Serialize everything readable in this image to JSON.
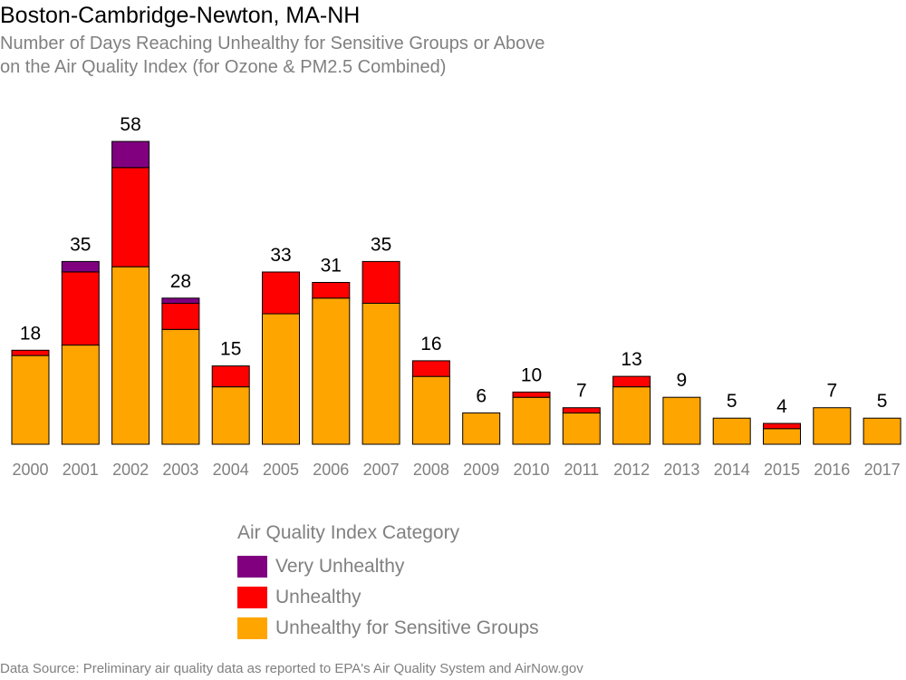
{
  "title": "Boston-Cambridge-Newton, MA-NH",
  "subtitle_lines": [
    "Number of Days Reaching Unhealthy for Sensitive Groups or Above",
    "on the Air Quality Index (for Ozone & PM2.5 Combined)"
  ],
  "legend": {
    "title": "Air Quality Index Category",
    "items": [
      {
        "label": "Very Unhealthy",
        "color": "#800080"
      },
      {
        "label": "Unhealthy",
        "color": "#ff0000"
      },
      {
        "label": "Unhealthy for Sensitive Groups",
        "color": "#ffa500"
      }
    ]
  },
  "source": "Data Source: Preliminary air quality data as reported to EPA's Air Quality System and AirNow.gov",
  "chart_data": {
    "type": "bar",
    "stacked": true,
    "categories": [
      "2000",
      "2001",
      "2002",
      "2003",
      "2004",
      "2005",
      "2006",
      "2007",
      "2008",
      "2009",
      "2010",
      "2011",
      "2012",
      "2013",
      "2014",
      "2015",
      "2016",
      "2017"
    ],
    "series": [
      {
        "name": "Unhealthy for Sensitive Groups",
        "color": "#ffa500",
        "values": [
          17,
          19,
          34,
          22,
          11,
          25,
          28,
          27,
          13,
          6,
          9,
          6,
          11,
          9,
          5,
          3,
          7,
          5
        ]
      },
      {
        "name": "Unhealthy",
        "color": "#ff0000",
        "values": [
          1,
          14,
          19,
          5,
          4,
          8,
          3,
          8,
          3,
          0,
          1,
          1,
          2,
          0,
          0,
          1,
          0,
          0
        ]
      },
      {
        "name": "Very Unhealthy",
        "color": "#800080",
        "values": [
          0,
          2,
          5,
          1,
          0,
          0,
          0,
          0,
          0,
          0,
          0,
          0,
          0,
          0,
          0,
          0,
          0,
          0
        ]
      }
    ],
    "totals": [
      18,
      35,
      58,
      28,
      15,
      33,
      31,
      35,
      16,
      6,
      10,
      7,
      13,
      9,
      5,
      4,
      7,
      5
    ],
    "ylim": [
      0,
      58
    ],
    "grid": false,
    "legend_position": "bottom"
  }
}
